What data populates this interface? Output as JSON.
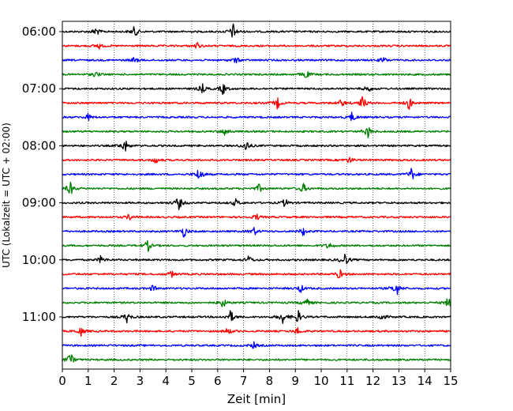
{
  "chart_data": {
    "type": "line",
    "title": "",
    "xlabel": "Zeit  [min]",
    "ylabel": "UTC (Lokalzeit = UTC + 02:00)",
    "xlim": [
      0,
      15
    ],
    "x_ticks": [
      0,
      1,
      2,
      3,
      4,
      5,
      6,
      7,
      8,
      9,
      10,
      11,
      12,
      13,
      14,
      15
    ],
    "y_tick_labels": [
      "06:00",
      "07:00",
      "08:00",
      "09:00",
      "10:00",
      "11:00"
    ],
    "grid": "vertical dotted lines at each minute",
    "trace_interval_minutes": 15,
    "color_cycle": [
      "#000000",
      "#ff0000",
      "#0000ff",
      "#008000"
    ],
    "series": [
      {
        "start": "06:00",
        "color": "#000000",
        "events": [
          {
            "t": 1.3,
            "amp": 0.6
          },
          {
            "t": 2.8,
            "amp": 0.7
          },
          {
            "t": 6.6,
            "amp": 1.0
          }
        ]
      },
      {
        "start": "06:15",
        "color": "#ff0000",
        "events": [
          {
            "t": 1.4,
            "amp": 0.4
          },
          {
            "t": 5.2,
            "amp": 0.4
          }
        ]
      },
      {
        "start": "06:30",
        "color": "#0000ff",
        "events": [
          {
            "t": 2.8,
            "amp": 0.4
          },
          {
            "t": 6.7,
            "amp": 0.4
          },
          {
            "t": 12.4,
            "amp": 0.4
          }
        ]
      },
      {
        "start": "06:45",
        "color": "#008000",
        "events": [
          {
            "t": 1.3,
            "amp": 0.4
          },
          {
            "t": 9.4,
            "amp": 0.6
          }
        ]
      },
      {
        "start": "07:00",
        "color": "#000000",
        "events": [
          {
            "t": 5.4,
            "amp": 0.6
          },
          {
            "t": 6.2,
            "amp": 0.7
          },
          {
            "t": 11.8,
            "amp": 0.5
          }
        ]
      },
      {
        "start": "07:15",
        "color": "#ff0000",
        "events": [
          {
            "t": 8.3,
            "amp": 0.7
          },
          {
            "t": 10.8,
            "amp": 0.5
          },
          {
            "t": 11.6,
            "amp": 0.9
          },
          {
            "t": 13.4,
            "amp": 0.8
          }
        ]
      },
      {
        "start": "07:30",
        "color": "#0000ff",
        "events": [
          {
            "t": 1.0,
            "amp": 0.4
          },
          {
            "t": 11.2,
            "amp": 0.6
          }
        ]
      },
      {
        "start": "07:45",
        "color": "#008000",
        "events": [
          {
            "t": 6.3,
            "amp": 0.6
          },
          {
            "t": 11.8,
            "amp": 0.8
          }
        ]
      },
      {
        "start": "08:00",
        "color": "#000000",
        "events": [
          {
            "t": 2.4,
            "amp": 0.9
          },
          {
            "t": 7.1,
            "amp": 0.7
          }
        ]
      },
      {
        "start": "08:15",
        "color": "#ff0000",
        "events": [
          {
            "t": 3.6,
            "amp": 0.4
          },
          {
            "t": 11.1,
            "amp": 0.4
          }
        ]
      },
      {
        "start": "08:30",
        "color": "#0000ff",
        "events": [
          {
            "t": 5.3,
            "amp": 1.0
          },
          {
            "t": 13.5,
            "amp": 0.8
          }
        ]
      },
      {
        "start": "08:45",
        "color": "#008000",
        "events": [
          {
            "t": 0.3,
            "amp": 0.9
          },
          {
            "t": 7.6,
            "amp": 0.5
          },
          {
            "t": 9.3,
            "amp": 0.6
          }
        ]
      },
      {
        "start": "09:00",
        "color": "#000000",
        "events": [
          {
            "t": 4.5,
            "amp": 0.9
          },
          {
            "t": 6.7,
            "amp": 0.5
          },
          {
            "t": 8.6,
            "amp": 0.5
          }
        ]
      },
      {
        "start": "09:15",
        "color": "#ff0000",
        "events": [
          {
            "t": 2.6,
            "amp": 0.4
          },
          {
            "t": 7.5,
            "amp": 0.4
          }
        ]
      },
      {
        "start": "09:30",
        "color": "#0000ff",
        "events": [
          {
            "t": 4.7,
            "amp": 0.7
          },
          {
            "t": 7.4,
            "amp": 0.5
          },
          {
            "t": 9.3,
            "amp": 0.5
          }
        ]
      },
      {
        "start": "09:45",
        "color": "#008000",
        "events": [
          {
            "t": 3.3,
            "amp": 0.7
          },
          {
            "t": 10.3,
            "amp": 0.4
          }
        ]
      },
      {
        "start": "10:00",
        "color": "#000000",
        "events": [
          {
            "t": 1.5,
            "amp": 0.5
          },
          {
            "t": 7.2,
            "amp": 0.5
          },
          {
            "t": 10.9,
            "amp": 1.0
          }
        ]
      },
      {
        "start": "10:15",
        "color": "#ff0000",
        "events": [
          {
            "t": 4.2,
            "amp": 0.4
          },
          {
            "t": 10.7,
            "amp": 0.6
          }
        ]
      },
      {
        "start": "10:30",
        "color": "#0000ff",
        "events": [
          {
            "t": 3.5,
            "amp": 0.4
          },
          {
            "t": 9.2,
            "amp": 0.5
          },
          {
            "t": 12.9,
            "amp": 1.0
          }
        ]
      },
      {
        "start": "10:45",
        "color": "#008000",
        "events": [
          {
            "t": 6.2,
            "amp": 0.6
          },
          {
            "t": 9.4,
            "amp": 0.7
          },
          {
            "t": 14.9,
            "amp": 0.6
          }
        ]
      },
      {
        "start": "11:00",
        "color": "#000000",
        "events": [
          {
            "t": 2.5,
            "amp": 0.7
          },
          {
            "t": 6.5,
            "amp": 0.8
          },
          {
            "t": 8.5,
            "amp": 0.8
          },
          {
            "t": 9.1,
            "amp": 0.8
          },
          {
            "t": 12.3,
            "amp": 0.6
          }
        ]
      },
      {
        "start": "11:15",
        "color": "#ff0000",
        "events": [
          {
            "t": 0.7,
            "amp": 0.6
          },
          {
            "t": 6.4,
            "amp": 0.4
          },
          {
            "t": 9.1,
            "amp": 0.5
          }
        ]
      },
      {
        "start": "11:30",
        "color": "#0000ff",
        "events": [
          {
            "t": 7.4,
            "amp": 0.4
          }
        ]
      },
      {
        "start": "11:45",
        "color": "#008000",
        "events": [
          {
            "t": 0.3,
            "amp": 1.0
          }
        ]
      }
    ]
  }
}
